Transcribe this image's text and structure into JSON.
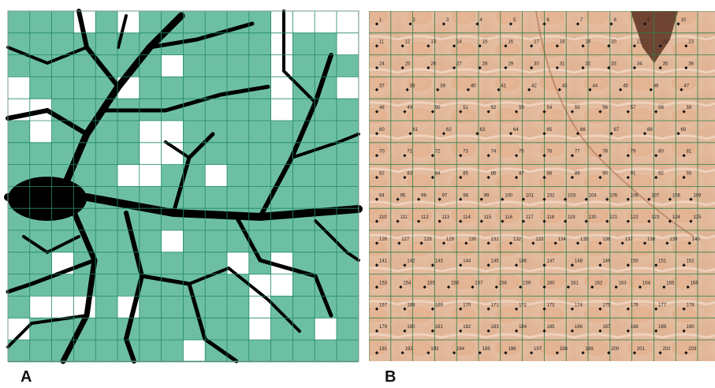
{
  "panel_a": {
    "label": "A"
  },
  "panel_b": {
    "label": "B",
    "points": [
      [
        1,
        2,
        3,
        4,
        5,
        6,
        7,
        8,
        9,
        10
      ],
      [
        11,
        12,
        13,
        14,
        15,
        16,
        17,
        18,
        19,
        20,
        21,
        22,
        23
      ],
      [
        24,
        25,
        26,
        27,
        28,
        29,
        30,
        31,
        32,
        33,
        34,
        35,
        36
      ],
      [
        37,
        38,
        39,
        40,
        41,
        42,
        43,
        44,
        45,
        46,
        47
      ],
      [
        48,
        49,
        50,
        51,
        52,
        53,
        54,
        55,
        56,
        57,
        58,
        59
      ],
      [
        60,
        61,
        62,
        63,
        64,
        65,
        66,
        67,
        68,
        69
      ],
      [
        70,
        71,
        72,
        73,
        74,
        75,
        76,
        77,
        78,
        79,
        80,
        81
      ],
      [
        82,
        83,
        84,
        85,
        86,
        87,
        88,
        89,
        90,
        91,
        92,
        93
      ],
      [
        94,
        95,
        96,
        97,
        98,
        99,
        100,
        101,
        102,
        103,
        104,
        105,
        106,
        107,
        108,
        109
      ],
      [
        110,
        111,
        112,
        113,
        114,
        115,
        116,
        117,
        118,
        119,
        120,
        121,
        122,
        123,
        124,
        125
      ],
      [
        126,
        127,
        128,
        129,
        130,
        131,
        132,
        133,
        134,
        135,
        136,
        137,
        138,
        139,
        140
      ],
      [
        141,
        142,
        143,
        144,
        145,
        146,
        147,
        148,
        149,
        150,
        151,
        152
      ],
      [
        153,
        154,
        155,
        156,
        157,
        158,
        159,
        160,
        161,
        162,
        163,
        164,
        165,
        166
      ],
      [
        167,
        168,
        169,
        170,
        171,
        172,
        173,
        174,
        175,
        176,
        177,
        178
      ],
      [
        179,
        180,
        181,
        182,
        183,
        184,
        185,
        186,
        187,
        188,
        189,
        190
      ],
      [
        191,
        192,
        193,
        194,
        195,
        196,
        197,
        198,
        199,
        200,
        201,
        202,
        203
      ]
    ]
  }
}
